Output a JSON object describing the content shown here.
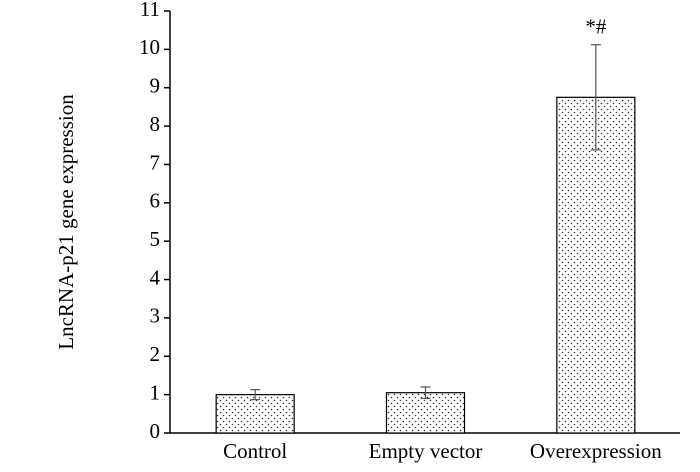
{
  "chart_data": {
    "type": "bar",
    "y_label": "LncRNA-p21 gene expression",
    "categories": [
      "Control",
      "Empty vector",
      "Overexpression"
    ],
    "values": [
      1.0,
      1.05,
      8.75
    ],
    "errors": [
      0.13,
      0.15,
      1.37
    ],
    "color": "#ffffff",
    "ylim": [
      0,
      11
    ],
    "yticks": [
      0,
      1,
      2,
      3,
      4,
      5,
      6,
      7,
      8,
      9,
      10,
      11
    ],
    "grid": false,
    "annotations": [
      {
        "text": "*#",
        "category": "Overexpression"
      }
    ]
  }
}
